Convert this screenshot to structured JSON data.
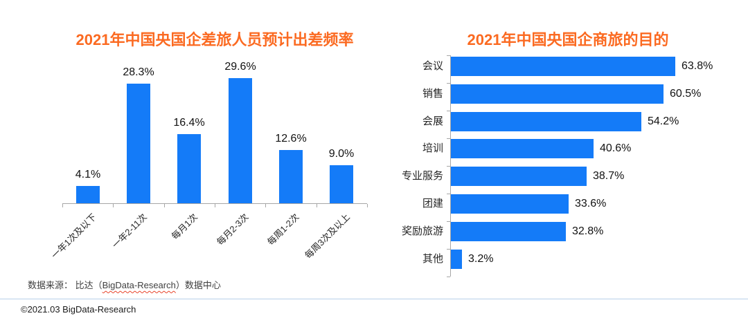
{
  "colors": {
    "bar_blue": "#147BF8",
    "title_orange": "#FB6A21",
    "axis_gray": "#A6A6A6",
    "divider_blue": "#B7CFE9",
    "spellcheck_red": "#E8442B"
  },
  "chart_data": [
    {
      "type": "bar",
      "title": "2021年中国央国企差旅人员预计出差频率",
      "categories": [
        "一年1次及以下",
        "一年2-11次",
        "每月1次",
        "每月2-3次",
        "每周1-2次",
        "每周3次及以上"
      ],
      "values": [
        4.1,
        28.3,
        16.4,
        29.6,
        12.6,
        9.0
      ],
      "value_labels": [
        "4.1%",
        "28.3%",
        "16.4%",
        "29.6%",
        "12.6%",
        "9.0%"
      ],
      "xlabel": "",
      "ylabel": "",
      "ylim": [
        0,
        35
      ],
      "grid": false,
      "legend": "none",
      "bar_color": "#147BF8",
      "value_label_position": "above-bar",
      "category_label_rotation_deg": -45
    },
    {
      "type": "bar-horizontal",
      "title": "2021年中国央国企商旅的目的",
      "categories": [
        "会议",
        "销售",
        "会展",
        "培训",
        "专业服务",
        "团建",
        "奖励旅游",
        "其他"
      ],
      "values": [
        63.8,
        60.5,
        54.2,
        40.6,
        38.7,
        33.6,
        32.8,
        3.2
      ],
      "value_labels": [
        "63.8%",
        "60.5%",
        "54.2%",
        "40.6%",
        "38.7%",
        "33.6%",
        "32.8%",
        "3.2%"
      ],
      "xlabel": "",
      "ylabel": "",
      "xlim": [
        0,
        70
      ],
      "grid": false,
      "legend": "none",
      "bar_color": "#147BF8",
      "value_label_position": "right-of-bar"
    }
  ],
  "footer": {
    "source_prefix": "数据来源： 比达（",
    "source_brand": "BigData-Research",
    "source_suffix": "）数据中心",
    "copyright": "©2021.03 BigData-Research"
  }
}
